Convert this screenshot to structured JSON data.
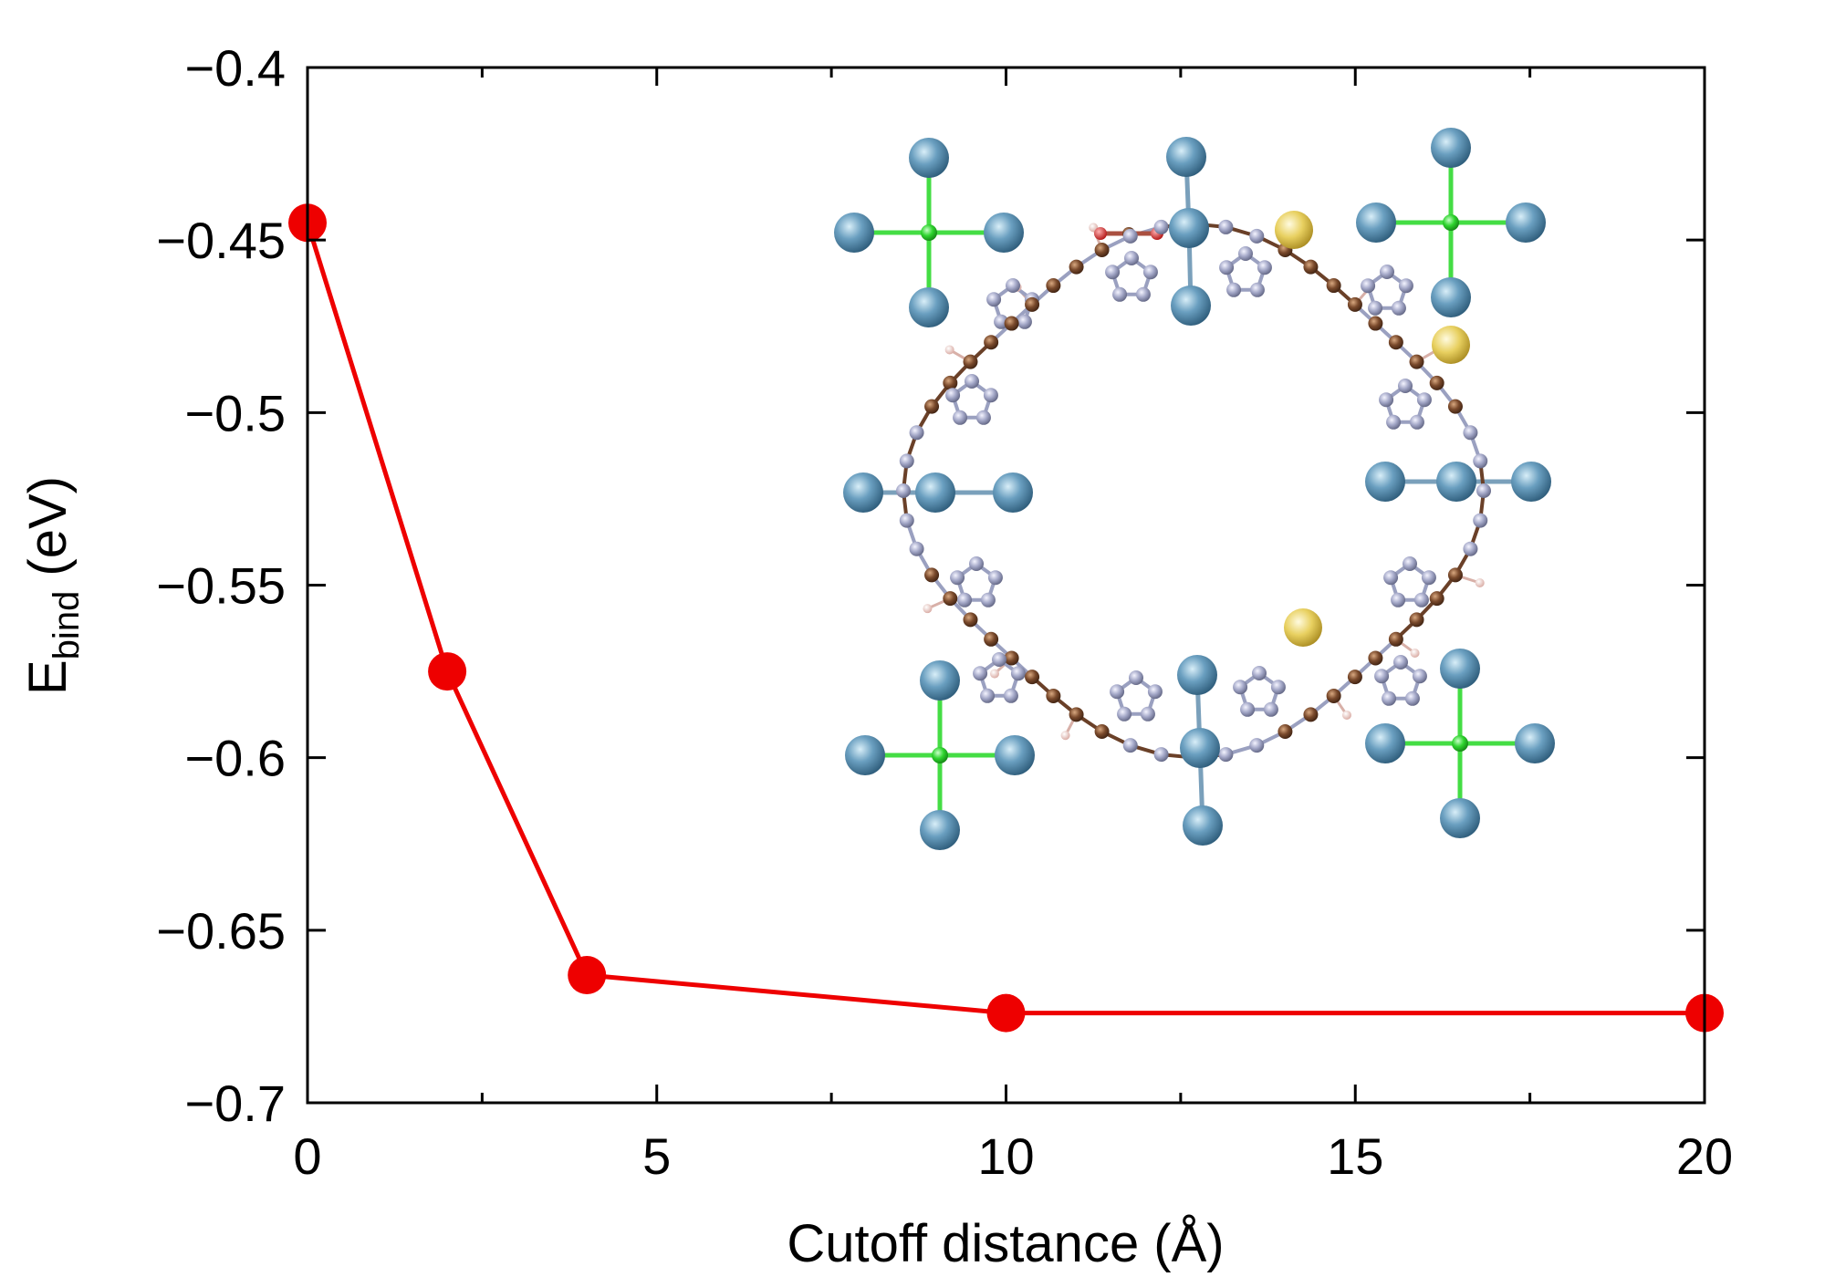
{
  "chart_data": {
    "type": "line",
    "title": "",
    "xlabel": "Cutoff distance (Å)",
    "ylabel_main": "E",
    "ylabel_sub": "bind",
    "ylabel_unit": " (eV)",
    "xlim": [
      0,
      20
    ],
    "ylim": [
      -0.7,
      -0.4
    ],
    "xticks": [
      0,
      5,
      10,
      15,
      20
    ],
    "xtick_labels": [
      "0",
      "5",
      "10",
      "15",
      "20"
    ],
    "xminor_step": 2.5,
    "yticks": [
      -0.7,
      -0.65,
      -0.6,
      -0.55,
      -0.5,
      -0.45,
      -0.4
    ],
    "ytick_labels": [
      "−0.7",
      "−0.65",
      "−0.6",
      "−0.55",
      "−0.5",
      "−0.45",
      "−0.4"
    ],
    "grid": false,
    "legend": "none",
    "series": [
      {
        "x": [
          0,
          2,
          4,
          10,
          20
        ],
        "y": [
          -0.445,
          -0.575,
          -0.663,
          -0.674,
          -0.674
        ],
        "color": "#ee0000",
        "marker": "circle"
      }
    ],
    "inset_image": "molecular-structure-render"
  },
  "colors": {
    "series": "#ee0000",
    "axis": "#000000",
    "metal_atom": "#5a8fb0",
    "chlorine_atom": "#2fd42f",
    "nitrogen_atom": "#a4a8c8",
    "carbon_atom": "#7a4a2c",
    "hydrogen_atom": "#f0c8c0",
    "oxygen_atom": "#e02020",
    "sulfur_atom": "#e8d060"
  }
}
